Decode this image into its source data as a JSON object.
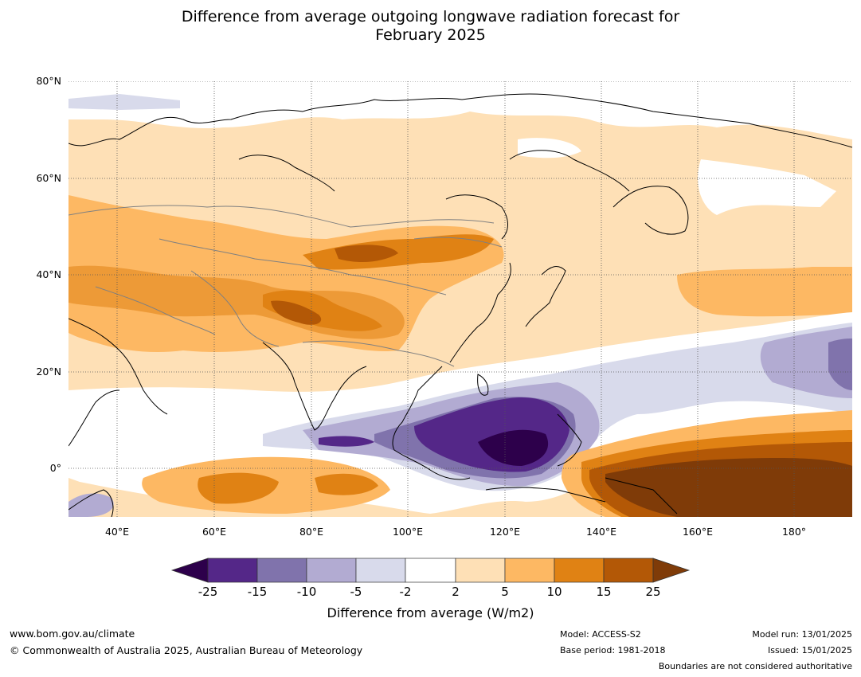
{
  "title_lines": [
    "Difference from average outgoing longwave radiation forecast for",
    "February 2025"
  ],
  "map": {
    "lon_range": [
      30,
      192
    ],
    "lat_range": [
      -10,
      80
    ],
    "lat_ticks": [
      {
        "value": 80,
        "label": "80°N"
      },
      {
        "value": 60,
        "label": "60°N"
      },
      {
        "value": 40,
        "label": "40°N"
      },
      {
        "value": 20,
        "label": "20°N"
      },
      {
        "value": 0,
        "label": "0°"
      }
    ],
    "lon_ticks": [
      {
        "value": 40,
        "label": "40°E"
      },
      {
        "value": 60,
        "label": "60°E"
      },
      {
        "value": 80,
        "label": "80°E"
      },
      {
        "value": 100,
        "label": "100°E"
      },
      {
        "value": 120,
        "label": "120°E"
      },
      {
        "value": 140,
        "label": "140°E"
      },
      {
        "value": 160,
        "label": "160°E"
      },
      {
        "value": 180,
        "label": "180°"
      }
    ]
  },
  "colorbar": {
    "label": "Difference from average (W/m2)",
    "ticks": [
      "-25",
      "-15",
      "-10",
      "-5",
      "-2",
      "2",
      "5",
      "10",
      "15",
      "25"
    ],
    "under_color": "#2d004b",
    "over_color": "#7f3b08",
    "colors": [
      "#542788",
      "#8073ac",
      "#b2abd2",
      "#d8daeb",
      "#ffffff",
      "#fee0b6",
      "#fdb863",
      "#e08214",
      "#b35806"
    ]
  },
  "footer": {
    "website": "www.bom.gov.au/climate",
    "copyright": "© Commonwealth of Australia 2025, Australian Bureau of Meteorology",
    "model": "Model: ACCESS-S2",
    "base_period": "Base period: 1981-2018",
    "model_run": "Model run: 13/01/2025",
    "issued": "Issued: 15/01/2025",
    "disclaimer": "Boundaries are not considered authoritative"
  }
}
